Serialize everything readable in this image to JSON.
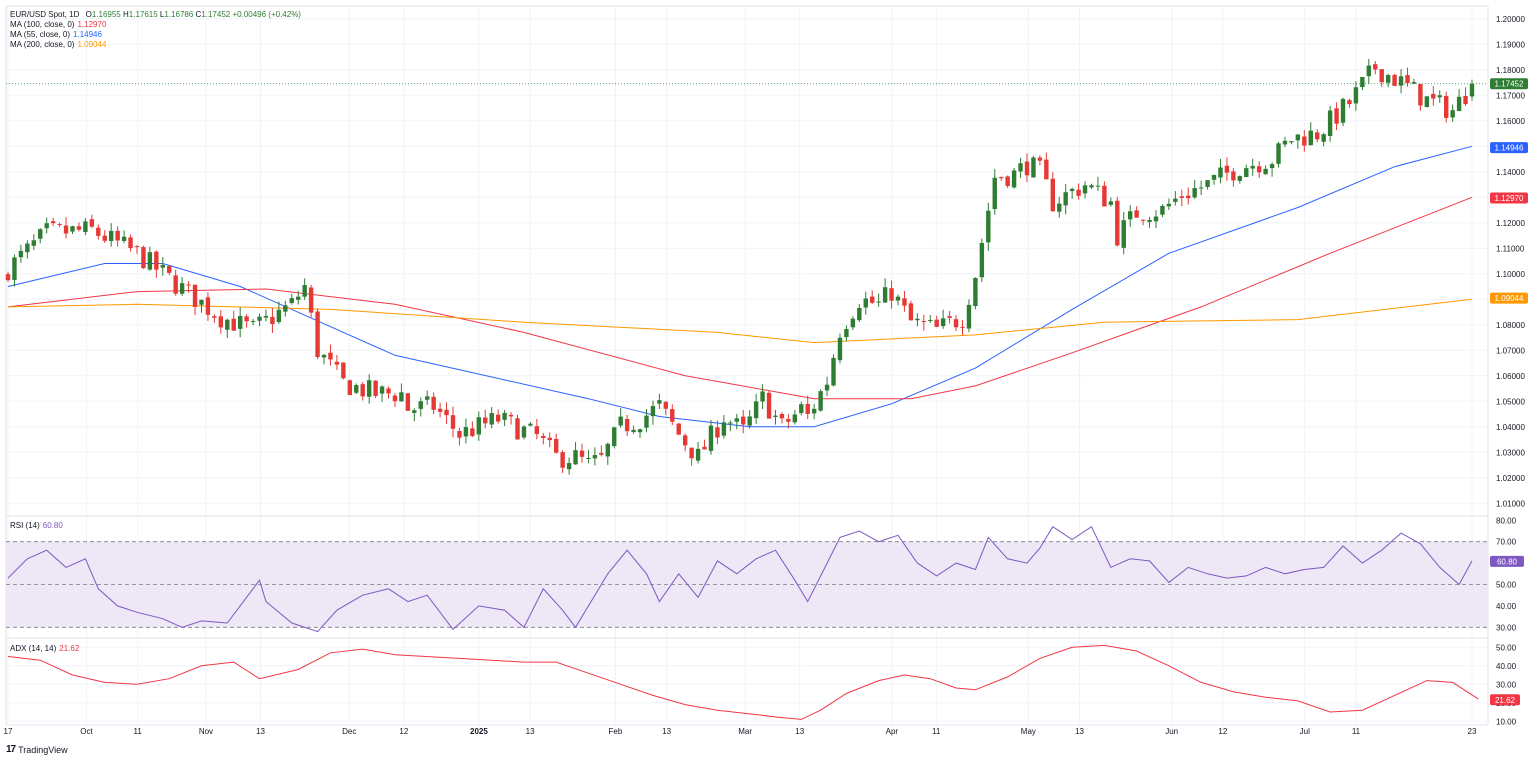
{
  "header": {
    "symbol": "EUR/USD Spot, 1D",
    "open_label": "O",
    "open": "1.16955",
    "high_label": "H",
    "high": "1.17615",
    "low_label": "L",
    "low": "1.16786",
    "close_label": "C",
    "close": "1.17452",
    "change": "+0.00496 (+0.42%)"
  },
  "indicators": {
    "ma100": {
      "label": "MA (100, close, 0)",
      "value": "1.12970",
      "color": "#f23645"
    },
    "ma55": {
      "label": "MA (55, close, 0)",
      "value": "1.14946",
      "color": "#2962ff"
    },
    "ma200": {
      "label": "MA (200, close, 0)",
      "value": "1.09044",
      "color": "#ff9800"
    },
    "rsi": {
      "label": "RSI (14)",
      "value": "60.80",
      "color": "#7e57c2"
    },
    "adx": {
      "label": "ADX (14, 14)",
      "value": "21.62",
      "color": "#f23645"
    }
  },
  "brand": {
    "name": "TradingView",
    "logo": "17"
  },
  "colors": {
    "up": "#26a69a",
    "up_body": "#2e7d32",
    "down": "#e53935",
    "grid": "#f0f3fa",
    "axis_text": "#131722",
    "rsi_band": "#ede7f6"
  },
  "chart_data": [
    {
      "type": "candlestick",
      "title": "EUR/USD Spot, 1D",
      "ylim": [
        1.005,
        1.205
      ],
      "y_ticks": [
        "1.20000",
        "1.19000",
        "1.18000",
        "1.17000",
        "1.16000",
        "1.15000",
        "1.14000",
        "1.13000",
        "1.12000",
        "1.11000",
        "1.10000",
        "1.09000",
        "1.08000",
        "1.07000",
        "1.06000",
        "1.05000",
        "1.04000",
        "1.03000",
        "1.02000",
        "1.01000"
      ],
      "x_ticks": [
        "17",
        "Oct",
        "11",
        "Nov",
        "13",
        "Dec",
        "12",
        "2025",
        "13",
        "Feb",
        "13",
        "Mar",
        "13",
        "Apr",
        "11",
        "May",
        "13",
        "Jun",
        "12",
        "Jul",
        "11",
        "23"
      ],
      "price_markers": [
        {
          "name": "last",
          "value": 1.17452,
          "label": "1.17452",
          "color": "#2e7d32"
        },
        {
          "name": "ma55",
          "value": 1.14946,
          "label": "1.14946",
          "color": "#2962ff"
        },
        {
          "name": "ma100",
          "value": 1.1297,
          "label": "1.12970",
          "color": "#f23645"
        },
        {
          "name": "ma200",
          "value": 1.09044,
          "label": "1.09044",
          "color": "#ff9800"
        }
      ],
      "close_path": [
        [
          0,
          1.102
        ],
        [
          6,
          1.116
        ],
        [
          13,
          1.117
        ],
        [
          20,
          1.108
        ],
        [
          26,
          1.096
        ],
        [
          33,
          1.083
        ],
        [
          38,
          1.078
        ],
        [
          44,
          1.088
        ],
        [
          46,
          1.095
        ],
        [
          48,
          1.07
        ],
        [
          52,
          1.057
        ],
        [
          57,
          1.053
        ],
        [
          61,
          1.053
        ],
        [
          62,
          1.047
        ],
        [
          66,
          1.048
        ],
        [
          70,
          1.037
        ],
        [
          76,
          1.043
        ],
        [
          82,
          1.036
        ],
        [
          85,
          1.028
        ],
        [
          88,
          1.028
        ],
        [
          90,
          1.025
        ],
        [
          92,
          1.027
        ],
        [
          95,
          1.04
        ],
        [
          98,
          1.043
        ],
        [
          101,
          1.048
        ],
        [
          104,
          1.037
        ],
        [
          107,
          1.028
        ],
        [
          111,
          1.044
        ],
        [
          114,
          1.038
        ],
        [
          117,
          1.051
        ],
        [
          120,
          1.04
        ],
        [
          123,
          1.047
        ],
        [
          124,
          1.044
        ],
        [
          127,
          1.058
        ],
        [
          129,
          1.078
        ],
        [
          132,
          1.09
        ],
        [
          135,
          1.088
        ],
        [
          137,
          1.093
        ],
        [
          140,
          1.081
        ],
        [
          144,
          1.078
        ],
        [
          148,
          1.083
        ],
        [
          150,
          1.1
        ],
        [
          153,
          1.138
        ],
        [
          156,
          1.139
        ],
        [
          158,
          1.143
        ],
        [
          160,
          1.14
        ],
        [
          162,
          1.128
        ],
        [
          167,
          1.135
        ],
        [
          171,
          1.128
        ],
        [
          172,
          1.115
        ],
        [
          175,
          1.124
        ],
        [
          179,
          1.125
        ],
        [
          182,
          1.131
        ],
        [
          186,
          1.135
        ],
        [
          191,
          1.142
        ],
        [
          196,
          1.145
        ],
        [
          199,
          1.153
        ],
        [
          203,
          1.155
        ],
        [
          208,
          1.167
        ],
        [
          212,
          1.181
        ],
        [
          216,
          1.175
        ],
        [
          220,
          1.168
        ],
        [
          224,
          1.164
        ],
        [
          227,
          1.174
        ]
      ],
      "series_ma": [
        {
          "name": "MA (55, close, 0)",
          "color": "#2962ff",
          "points": [
            [
              0,
              1.095
            ],
            [
              15,
              1.104
            ],
            [
              24,
              1.104
            ],
            [
              36,
              1.095
            ],
            [
              60,
              1.068
            ],
            [
              90,
              1.051
            ],
            [
              101,
              1.044
            ],
            [
              115,
              1.04
            ],
            [
              125,
              1.04
            ],
            [
              137,
              1.049
            ],
            [
              150,
              1.063
            ],
            [
              165,
              1.086
            ],
            [
              180,
              1.108
            ],
            [
              200,
              1.126
            ],
            [
              215,
              1.142
            ],
            [
              227,
              1.15
            ]
          ]
        },
        {
          "name": "MA (100, close, 0)",
          "color": "#f23645",
          "points": [
            [
              0,
              1.087
            ],
            [
              20,
              1.093
            ],
            [
              40,
              1.094
            ],
            [
              60,
              1.088
            ],
            [
              80,
              1.077
            ],
            [
              105,
              1.06
            ],
            [
              125,
              1.051
            ],
            [
              140,
              1.051
            ],
            [
              150,
              1.056
            ],
            [
              165,
              1.069
            ],
            [
              185,
              1.087
            ],
            [
              205,
              1.108
            ],
            [
              227,
              1.13
            ]
          ]
        },
        {
          "name": "MA (200, close, 0)",
          "color": "#ff9800",
          "points": [
            [
              0,
              1.087
            ],
            [
              20,
              1.088
            ],
            [
              50,
              1.086
            ],
            [
              80,
              1.081
            ],
            [
              110,
              1.077
            ],
            [
              125,
              1.073
            ],
            [
              150,
              1.076
            ],
            [
              170,
              1.081
            ],
            [
              200,
              1.082
            ],
            [
              227,
              1.09
            ]
          ]
        }
      ]
    },
    {
      "type": "line",
      "title": "RSI (14)",
      "ylim": [
        25,
        82
      ],
      "y_ticks": [
        "80.00",
        "70.00",
        "60.00",
        "50.00",
        "40.00",
        "30.00"
      ],
      "bands": [
        70,
        50,
        30
      ],
      "points": [
        [
          0,
          53
        ],
        [
          3,
          62
        ],
        [
          6,
          66
        ],
        [
          9,
          58
        ],
        [
          12,
          62
        ],
        [
          14,
          48
        ],
        [
          17,
          40
        ],
        [
          20,
          37
        ],
        [
          24,
          34
        ],
        [
          27,
          30
        ],
        [
          30,
          33
        ],
        [
          34,
          32
        ],
        [
          37,
          44
        ],
        [
          39,
          52
        ],
        [
          40,
          42
        ],
        [
          44,
          32
        ],
        [
          48,
          28
        ],
        [
          51,
          38
        ],
        [
          55,
          45
        ],
        [
          59,
          48
        ],
        [
          62,
          42
        ],
        [
          65,
          45
        ],
        [
          69,
          29
        ],
        [
          73,
          40
        ],
        [
          77,
          38
        ],
        [
          80,
          30
        ],
        [
          83,
          48
        ],
        [
          86,
          38
        ],
        [
          88,
          30
        ],
        [
          91,
          45
        ],
        [
          93,
          55
        ],
        [
          96,
          66
        ],
        [
          99,
          55
        ],
        [
          101,
          42
        ],
        [
          104,
          55
        ],
        [
          107,
          44
        ],
        [
          110,
          61
        ],
        [
          113,
          55
        ],
        [
          116,
          62
        ],
        [
          119,
          66
        ],
        [
          122,
          52
        ],
        [
          124,
          42
        ],
        [
          127,
          60
        ],
        [
          129,
          72
        ],
        [
          132,
          75
        ],
        [
          135,
          70
        ],
        [
          138,
          73
        ],
        [
          141,
          60
        ],
        [
          144,
          54
        ],
        [
          147,
          60
        ],
        [
          150,
          57
        ],
        [
          152,
          72
        ],
        [
          155,
          62
        ],
        [
          158,
          60
        ],
        [
          160,
          67
        ],
        [
          162,
          77
        ],
        [
          165,
          71
        ],
        [
          168,
          77
        ],
        [
          171,
          58
        ],
        [
          174,
          62
        ],
        [
          177,
          61
        ],
        [
          180,
          51
        ],
        [
          183,
          58
        ],
        [
          186,
          55
        ],
        [
          189,
          53
        ],
        [
          192,
          54
        ],
        [
          195,
          58
        ],
        [
          198,
          55
        ],
        [
          201,
          57
        ],
        [
          204,
          58
        ],
        [
          207,
          68
        ],
        [
          210,
          60
        ],
        [
          213,
          66
        ],
        [
          216,
          74
        ],
        [
          219,
          69
        ],
        [
          222,
          58
        ],
        [
          225,
          50
        ],
        [
          227,
          61
        ]
      ]
    },
    {
      "type": "line",
      "title": "ADX (14, 14)",
      "ylim": [
        8,
        55
      ],
      "y_ticks": [
        "50.00",
        "40.00",
        "30.00",
        "20.00",
        "10.00"
      ],
      "points": [
        [
          0,
          45
        ],
        [
          5,
          43
        ],
        [
          10,
          35
        ],
        [
          15,
          31
        ],
        [
          20,
          30
        ],
        [
          25,
          33
        ],
        [
          30,
          40
        ],
        [
          35,
          42
        ],
        [
          39,
          33
        ],
        [
          45,
          38
        ],
        [
          50,
          47
        ],
        [
          55,
          49
        ],
        [
          60,
          46
        ],
        [
          70,
          44
        ],
        [
          80,
          42
        ],
        [
          85,
          42
        ],
        [
          90,
          36
        ],
        [
          95,
          30
        ],
        [
          100,
          24
        ],
        [
          105,
          19
        ],
        [
          110,
          16
        ],
        [
          115,
          14
        ],
        [
          120,
          12
        ],
        [
          123,
          11
        ],
        [
          126,
          16
        ],
        [
          130,
          25
        ],
        [
          135,
          32
        ],
        [
          139,
          35
        ],
        [
          143,
          33
        ],
        [
          147,
          28
        ],
        [
          150,
          27
        ],
        [
          155,
          34
        ],
        [
          160,
          44
        ],
        [
          165,
          50
        ],
        [
          170,
          51
        ],
        [
          175,
          48
        ],
        [
          180,
          40
        ],
        [
          185,
          31
        ],
        [
          190,
          26
        ],
        [
          195,
          23
        ],
        [
          200,
          21
        ],
        [
          205,
          15
        ],
        [
          210,
          16
        ],
        [
          215,
          24
        ],
        [
          220,
          32
        ],
        [
          224,
          31
        ],
        [
          228,
          22
        ]
      ]
    }
  ]
}
